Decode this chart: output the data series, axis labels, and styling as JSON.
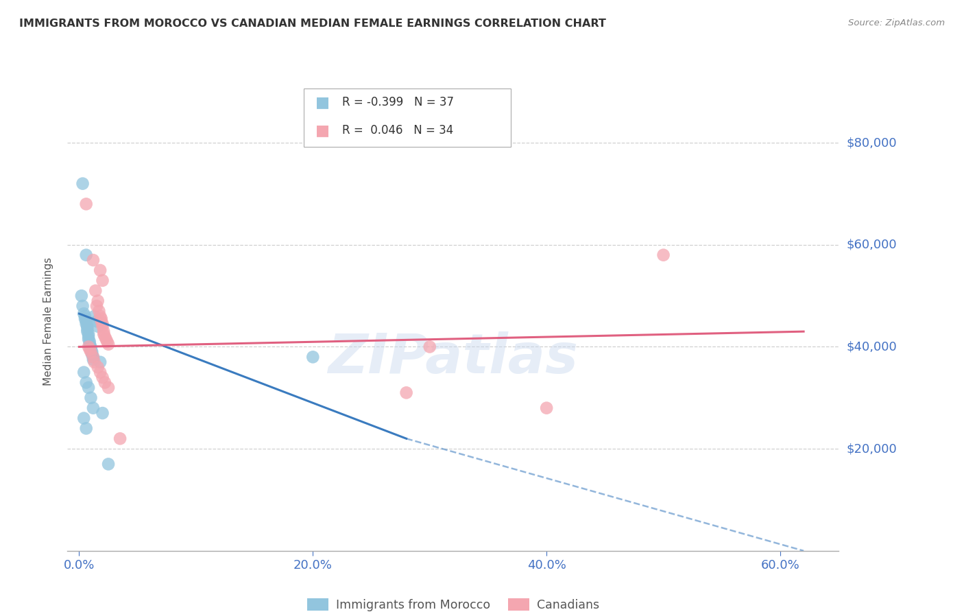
{
  "title": "IMMIGRANTS FROM MOROCCO VS CANADIAN MEDIAN FEMALE EARNINGS CORRELATION CHART",
  "source": "Source: ZipAtlas.com",
  "ylabel": "Median Female Earnings",
  "xlabel_ticks": [
    "0.0%",
    "20.0%",
    "40.0%",
    "60.0%"
  ],
  "xlabel_tick_vals": [
    0.0,
    0.2,
    0.4,
    0.6
  ],
  "ytick_labels": [
    "$20,000",
    "$40,000",
    "$60,000",
    "$80,000"
  ],
  "ytick_vals": [
    20000,
    40000,
    60000,
    80000
  ],
  "ylim": [
    0,
    90000
  ],
  "xlim": [
    -0.01,
    0.65
  ],
  "watermark": "ZIPatlas",
  "legend_box": {
    "blue_r": "-0.399",
    "blue_n": "37",
    "pink_r": "0.046",
    "pink_n": "34"
  },
  "blue_scatter": [
    [
      0.003,
      72000
    ],
    [
      0.006,
      58000
    ],
    [
      0.002,
      50000
    ],
    [
      0.003,
      48000
    ],
    [
      0.004,
      46500
    ],
    [
      0.005,
      46000
    ],
    [
      0.005,
      45500
    ],
    [
      0.006,
      45000
    ],
    [
      0.006,
      44500
    ],
    [
      0.007,
      44000
    ],
    [
      0.007,
      43500
    ],
    [
      0.007,
      43000
    ],
    [
      0.008,
      42500
    ],
    [
      0.008,
      42000
    ],
    [
      0.008,
      41500
    ],
    [
      0.009,
      41000
    ],
    [
      0.009,
      40500
    ],
    [
      0.01,
      40000
    ],
    [
      0.01,
      39500
    ],
    [
      0.011,
      39000
    ],
    [
      0.011,
      38500
    ],
    [
      0.012,
      38000
    ],
    [
      0.012,
      37500
    ],
    [
      0.013,
      46000
    ],
    [
      0.015,
      45000
    ],
    [
      0.016,
      44000
    ],
    [
      0.018,
      37000
    ],
    [
      0.004,
      35000
    ],
    [
      0.006,
      33000
    ],
    [
      0.008,
      32000
    ],
    [
      0.01,
      30000
    ],
    [
      0.012,
      28000
    ],
    [
      0.02,
      27000
    ],
    [
      0.025,
      17000
    ],
    [
      0.2,
      38000
    ],
    [
      0.004,
      26000
    ],
    [
      0.006,
      24000
    ]
  ],
  "pink_scatter": [
    [
      0.006,
      68000
    ],
    [
      0.012,
      57000
    ],
    [
      0.018,
      55000
    ],
    [
      0.02,
      53000
    ],
    [
      0.014,
      51000
    ],
    [
      0.016,
      49000
    ],
    [
      0.015,
      48000
    ],
    [
      0.017,
      47000
    ],
    [
      0.018,
      46000
    ],
    [
      0.019,
      45500
    ],
    [
      0.019,
      45000
    ],
    [
      0.02,
      44500
    ],
    [
      0.02,
      44000
    ],
    [
      0.021,
      43000
    ],
    [
      0.021,
      42500
    ],
    [
      0.022,
      42000
    ],
    [
      0.023,
      41500
    ],
    [
      0.024,
      41000
    ],
    [
      0.025,
      40500
    ],
    [
      0.008,
      40000
    ],
    [
      0.009,
      39500
    ],
    [
      0.01,
      39000
    ],
    [
      0.012,
      38000
    ],
    [
      0.013,
      37000
    ],
    [
      0.016,
      36000
    ],
    [
      0.018,
      35000
    ],
    [
      0.02,
      34000
    ],
    [
      0.022,
      33000
    ],
    [
      0.025,
      32000
    ],
    [
      0.035,
      22000
    ],
    [
      0.5,
      58000
    ],
    [
      0.3,
      40000
    ],
    [
      0.28,
      31000
    ],
    [
      0.4,
      28000
    ]
  ],
  "blue_line_solid": {
    "x0": 0.0,
    "y0": 46500,
    "x1": 0.28,
    "y1": 22000
  },
  "blue_line_dashed": {
    "x0": 0.28,
    "y0": 22000,
    "x1": 0.62,
    "y1": 0
  },
  "pink_line": {
    "x0": 0.0,
    "y0": 40000,
    "x1": 0.62,
    "y1": 43000
  },
  "blue_color": "#92c5de",
  "pink_color": "#f4a6b0",
  "blue_line_color": "#3a7bbf",
  "pink_line_color": "#e06080",
  "background_color": "#ffffff",
  "grid_color": "#d0d0d0",
  "title_color": "#333333",
  "ytick_color": "#4472c4",
  "xtick_color": "#4472c4"
}
